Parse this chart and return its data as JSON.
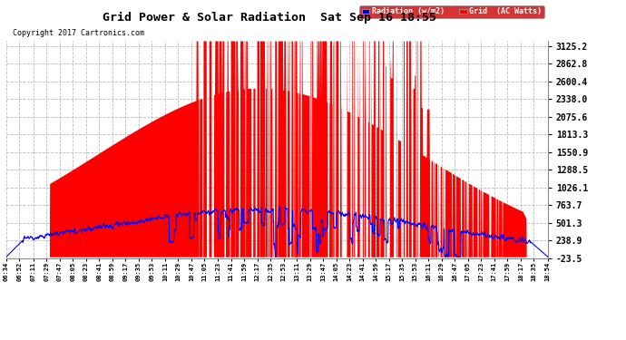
{
  "title": "Grid Power & Solar Radiation  Sat Sep 16 18:55",
  "copyright": "Copyright 2017 Cartronics.com",
  "background_color": "#ffffff",
  "plot_background": "#ffffff",
  "yticks": [
    -23.5,
    238.9,
    501.3,
    763.7,
    1026.1,
    1288.5,
    1550.9,
    1813.3,
    2075.6,
    2338.0,
    2600.4,
    2862.8,
    3125.2
  ],
  "ylim": [
    -23.5,
    3200.0
  ],
  "legend_radiation_label": "Radiation (w/m2)",
  "legend_grid_label": "Grid  (AC Watts)",
  "xtick_labels": [
    "06:34",
    "06:52",
    "07:11",
    "07:29",
    "07:47",
    "08:05",
    "08:23",
    "08:41",
    "08:59",
    "09:17",
    "09:35",
    "09:53",
    "10:11",
    "10:29",
    "10:47",
    "11:05",
    "11:23",
    "11:41",
    "11:59",
    "12:17",
    "12:35",
    "12:53",
    "13:11",
    "13:29",
    "13:47",
    "14:05",
    "14:23",
    "14:41",
    "14:59",
    "15:17",
    "15:35",
    "15:53",
    "16:11",
    "16:29",
    "16:47",
    "17:05",
    "17:23",
    "17:41",
    "17:59",
    "18:17",
    "18:35",
    "18:54"
  ]
}
